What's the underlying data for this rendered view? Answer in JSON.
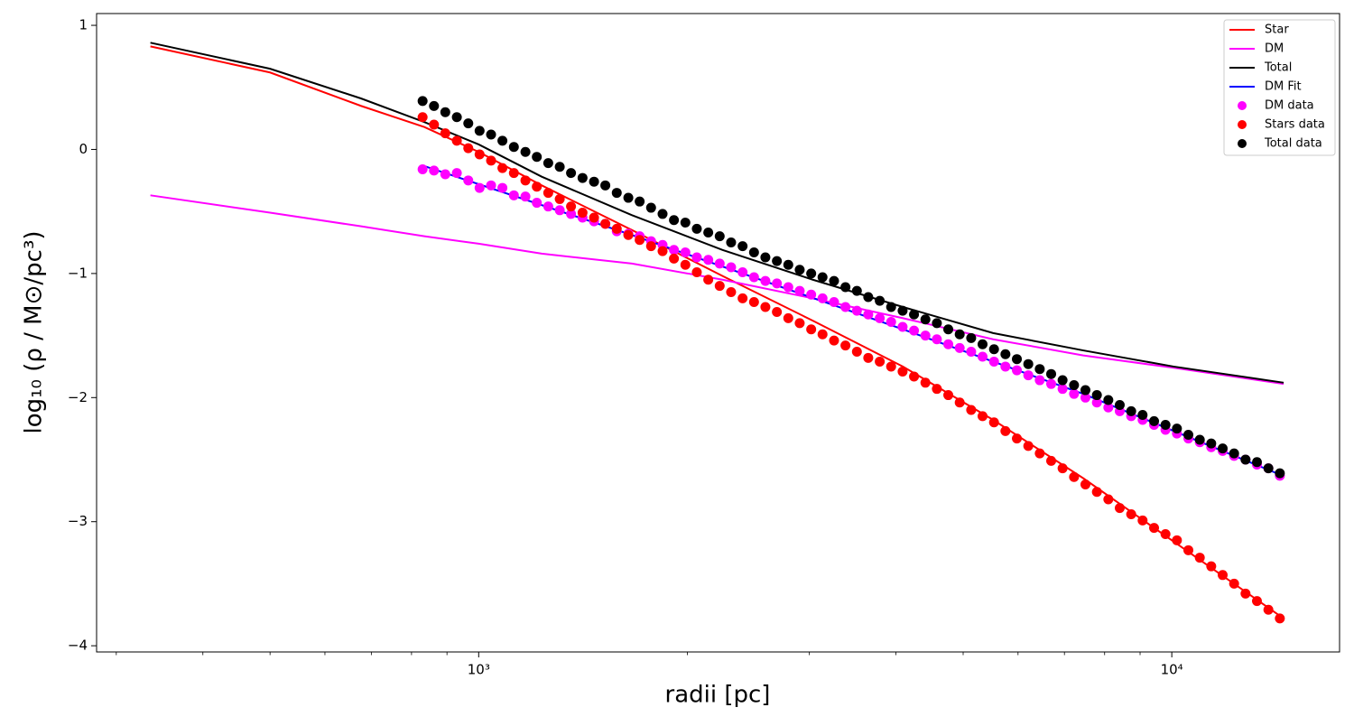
{
  "chart_data": {
    "type": "line",
    "xlabel": "radii [pc]",
    "ylabel": "log₁₀ (ρ / M⊙/pc³)",
    "xscale": "log",
    "xlim": [
      281,
      17460
    ],
    "ylim": [
      -4.05,
      1.095
    ],
    "xticks": [
      {
        "value": 1000,
        "label": "10³"
      },
      {
        "value": 10000,
        "label": "10⁴"
      }
    ],
    "xminorticks": [
      300,
      400,
      500,
      600,
      700,
      800,
      900,
      2000,
      3000,
      4000,
      5000,
      6000,
      7000,
      8000,
      9000
    ],
    "yticks": [
      {
        "value": 1,
        "label": "1"
      },
      0,
      {
        "value": -1,
        "label": "−1"
      },
      {
        "value": -2,
        "label": "−2"
      },
      {
        "value": -3,
        "label": "−3"
      },
      {
        "value": -4,
        "label": "−4"
      }
    ],
    "legend": "upper right",
    "series": [
      {
        "name": "Star",
        "style": "line",
        "color": "#ff0000",
        "x": [
          336,
          500,
          677,
          835,
          1000,
          1233,
          1664,
          2248,
          3034,
          4094,
          5524,
          7452,
          10060,
          14500
        ],
        "values": [
          0.83,
          0.62,
          0.35,
          0.18,
          -0.02,
          -0.29,
          -0.65,
          -1.02,
          -1.38,
          -1.75,
          -2.18,
          -2.65,
          -3.16,
          -3.78
        ]
      },
      {
        "name": "DM",
        "style": "line",
        "color": "#ff00ff",
        "x": [
          336,
          500,
          677,
          835,
          1000,
          1233,
          1664,
          2248,
          3034,
          4094,
          5524,
          7452,
          10060,
          14500
        ],
        "values": [
          -0.37,
          -0.51,
          -0.62,
          -0.7,
          -0.76,
          -0.84,
          -0.92,
          -1.05,
          -1.2,
          -1.36,
          -1.53,
          -1.66,
          -1.76,
          -1.89
        ]
      },
      {
        "name": "Total",
        "style": "line",
        "color": "#000000",
        "x": [
          336,
          500,
          677,
          835,
          1000,
          1233,
          1664,
          2248,
          3034,
          4094,
          5524,
          7452,
          10060,
          14500
        ],
        "values": [
          0.86,
          0.65,
          0.41,
          0.22,
          0.04,
          -0.22,
          -0.53,
          -0.81,
          -1.05,
          -1.27,
          -1.48,
          -1.62,
          -1.75,
          -1.88
        ]
      },
      {
        "name": "DM Fit",
        "style": "line",
        "color": "#0000ff",
        "x": [
          830,
          1664,
          4094,
          7452,
          14318
        ],
        "values": [
          -0.13,
          -0.69,
          -1.45,
          -1.97,
          -2.62
        ]
      },
      {
        "name": "DM data",
        "style": "marker",
        "color": "#ff00ff",
        "x": [
          830,
          862,
          895,
          930,
          966,
          1003,
          1042,
          1082,
          1124,
          1168,
          1213,
          1260,
          1309,
          1359,
          1412,
          1467,
          1523,
          1582,
          1644,
          1707,
          1773,
          1842,
          1913,
          1987,
          2064,
          2144,
          2227,
          2313,
          2403,
          2496,
          2592,
          2693,
          2797,
          2905,
          3018,
          3134,
          3256,
          3382,
          3513,
          3648,
          3790,
          3936,
          4089,
          4247,
          4411,
          4582,
          4759,
          4943,
          5135,
          5333,
          5540,
          5754,
          5977,
          6208,
          6449,
          6698,
          6957,
          7227,
          7506,
          7797,
          8099,
          8412,
          8738,
          9076,
          9428,
          9793,
          10172,
          10566,
          10975,
          11400,
          11841,
          12300,
          12776,
          13270,
          13784,
          14318
        ],
        "values": [
          -0.16,
          -0.17,
          -0.2,
          -0.19,
          -0.25,
          -0.31,
          -0.29,
          -0.31,
          -0.37,
          -0.38,
          -0.43,
          -0.46,
          -0.49,
          -0.52,
          -0.55,
          -0.58,
          -0.6,
          -0.66,
          -0.68,
          -0.7,
          -0.74,
          -0.77,
          -0.81,
          -0.83,
          -0.87,
          -0.89,
          -0.92,
          -0.95,
          -0.99,
          -1.03,
          -1.06,
          -1.08,
          -1.11,
          -1.14,
          -1.17,
          -1.2,
          -1.23,
          -1.27,
          -1.3,
          -1.33,
          -1.36,
          -1.39,
          -1.43,
          -1.46,
          -1.5,
          -1.53,
          -1.57,
          -1.6,
          -1.63,
          -1.67,
          -1.71,
          -1.75,
          -1.78,
          -1.82,
          -1.86,
          -1.89,
          -1.93,
          -1.97,
          -2.0,
          -2.04,
          -2.08,
          -2.11,
          -2.15,
          -2.18,
          -2.22,
          -2.26,
          -2.29,
          -2.33,
          -2.36,
          -2.4,
          -2.43,
          -2.47,
          -2.5,
          -2.54,
          -2.57,
          -2.63
        ]
      },
      {
        "name": "Stars data",
        "style": "marker",
        "color": "#ff0000",
        "x": [
          830,
          862,
          895,
          930,
          966,
          1003,
          1042,
          1082,
          1124,
          1168,
          1213,
          1260,
          1309,
          1359,
          1412,
          1467,
          1523,
          1582,
          1644,
          1707,
          1773,
          1842,
          1913,
          1987,
          2064,
          2144,
          2227,
          2313,
          2403,
          2496,
          2592,
          2693,
          2797,
          2905,
          3018,
          3134,
          3256,
          3382,
          3513,
          3648,
          3790,
          3936,
          4089,
          4247,
          4411,
          4582,
          4759,
          4943,
          5135,
          5333,
          5540,
          5754,
          5977,
          6208,
          6449,
          6698,
          6957,
          7227,
          7506,
          7797,
          8099,
          8412,
          8738,
          9076,
          9428,
          9793,
          10172,
          10566,
          10975,
          11400,
          11841,
          12300,
          12776,
          13270,
          13784,
          14318
        ],
        "values": [
          0.26,
          0.2,
          0.13,
          0.07,
          0.01,
          -0.04,
          -0.09,
          -0.15,
          -0.19,
          -0.25,
          -0.3,
          -0.35,
          -0.4,
          -0.46,
          -0.51,
          -0.55,
          -0.6,
          -0.64,
          -0.69,
          -0.73,
          -0.78,
          -0.82,
          -0.88,
          -0.93,
          -0.99,
          -1.05,
          -1.1,
          -1.15,
          -1.2,
          -1.23,
          -1.27,
          -1.31,
          -1.36,
          -1.4,
          -1.45,
          -1.49,
          -1.54,
          -1.58,
          -1.63,
          -1.68,
          -1.71,
          -1.75,
          -1.79,
          -1.83,
          -1.88,
          -1.93,
          -1.98,
          -2.04,
          -2.1,
          -2.15,
          -2.2,
          -2.27,
          -2.33,
          -2.39,
          -2.45,
          -2.51,
          -2.57,
          -2.64,
          -2.7,
          -2.76,
          -2.82,
          -2.89,
          -2.94,
          -2.99,
          -3.05,
          -3.1,
          -3.15,
          -3.23,
          -3.29,
          -3.36,
          -3.43,
          -3.5,
          -3.58,
          -3.64,
          -3.71,
          -3.78
        ]
      },
      {
        "name": "Total data",
        "style": "marker",
        "color": "#000000",
        "x": [
          830,
          862,
          895,
          930,
          966,
          1003,
          1042,
          1082,
          1124,
          1168,
          1213,
          1260,
          1309,
          1359,
          1412,
          1467,
          1523,
          1582,
          1644,
          1707,
          1773,
          1842,
          1913,
          1987,
          2064,
          2144,
          2227,
          2313,
          2403,
          2496,
          2592,
          2693,
          2797,
          2905,
          3018,
          3134,
          3256,
          3382,
          3513,
          3648,
          3790,
          3936,
          4089,
          4247,
          4411,
          4582,
          4759,
          4943,
          5135,
          5333,
          5540,
          5754,
          5977,
          6208,
          6449,
          6698,
          6957,
          7227,
          7506,
          7797,
          8099,
          8412,
          8738,
          9076,
          9428,
          9793,
          10172,
          10566,
          10975,
          11400,
          11841,
          12300,
          12776,
          13270,
          13784,
          14318
        ],
        "values": [
          0.39,
          0.35,
          0.3,
          0.26,
          0.21,
          0.15,
          0.12,
          0.07,
          0.02,
          -0.02,
          -0.06,
          -0.11,
          -0.14,
          -0.19,
          -0.23,
          -0.26,
          -0.29,
          -0.35,
          -0.39,
          -0.42,
          -0.47,
          -0.52,
          -0.57,
          -0.59,
          -0.64,
          -0.67,
          -0.7,
          -0.75,
          -0.78,
          -0.83,
          -0.87,
          -0.9,
          -0.93,
          -0.97,
          -1.0,
          -1.03,
          -1.06,
          -1.11,
          -1.14,
          -1.19,
          -1.22,
          -1.27,
          -1.3,
          -1.33,
          -1.37,
          -1.4,
          -1.45,
          -1.49,
          -1.52,
          -1.57,
          -1.61,
          -1.65,
          -1.69,
          -1.73,
          -1.77,
          -1.81,
          -1.86,
          -1.9,
          -1.94,
          -1.98,
          -2.02,
          -2.06,
          -2.11,
          -2.14,
          -2.19,
          -2.22,
          -2.25,
          -2.3,
          -2.34,
          -2.37,
          -2.41,
          -2.45,
          -2.5,
          -2.52,
          -2.57,
          -2.61
        ]
      }
    ]
  }
}
